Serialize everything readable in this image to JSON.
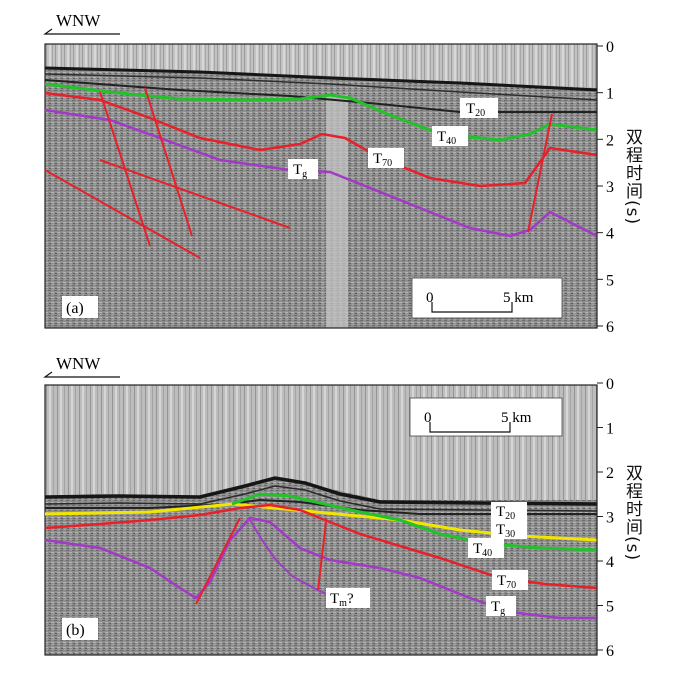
{
  "figure": {
    "axis_unit_label": "双程时间(s)",
    "scale_bar": {
      "start": "0",
      "end": "5 km"
    },
    "panels": [
      {
        "id": "a",
        "panel_label": "(a)",
        "direction": "WNW",
        "time_ticks": [
          "0",
          "1",
          "2",
          "3",
          "4",
          "5",
          "6"
        ],
        "horizon_labels": [
          {
            "base": "T",
            "sub": "20"
          },
          {
            "base": "T",
            "sub": "40"
          },
          {
            "base": "T",
            "sub": "70"
          },
          {
            "base": "T",
            "sub": "g"
          }
        ]
      },
      {
        "id": "b",
        "panel_label": "(b)",
        "direction": "WNW",
        "time_ticks": [
          "0",
          "1",
          "2",
          "3",
          "4",
          "5",
          "6"
        ],
        "horizon_labels": [
          {
            "base": "T",
            "sub": "20"
          },
          {
            "base": "T",
            "sub": "30"
          },
          {
            "base": "T",
            "sub": "40"
          },
          {
            "base": "T",
            "sub": "70"
          },
          {
            "base": "T",
            "sub": "g"
          },
          {
            "base": "T",
            "sub": "m",
            "suffix": "?"
          }
        ]
      }
    ],
    "colors": {
      "seabed": "#1a1a1a",
      "T20": "#2a2a2a",
      "T30": "#f2e600",
      "T40": "#22c22a",
      "T70": "#e8202a",
      "Tg": "#a23ac8",
      "faults": "#e8202a"
    }
  }
}
